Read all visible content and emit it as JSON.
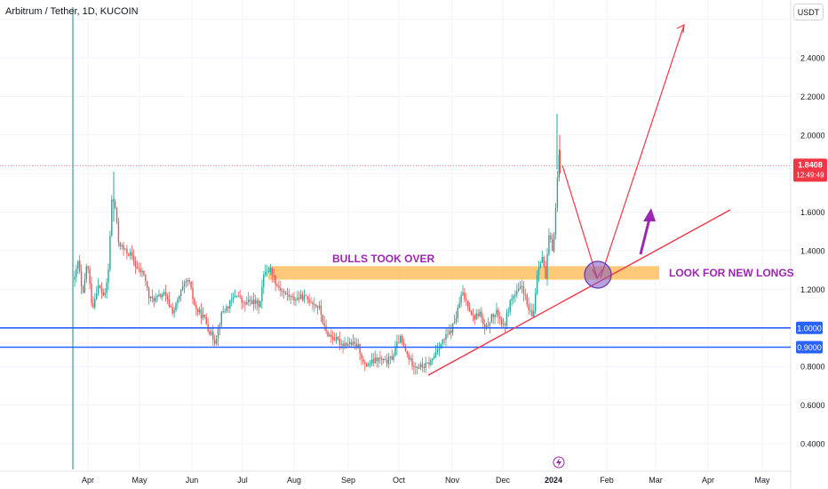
{
  "header": {
    "symbol_title": "Arbitrum / Tether, 1D, KUCOIN",
    "unit_label": "USDT"
  },
  "colors": {
    "up": "#26a69a",
    "down": "#ef5350",
    "level_line": "#2962ff",
    "trend": "#f23645",
    "zone": "#ffb74d",
    "annotation_text": "#9c27b0",
    "arrow_purple": "#9c27b0",
    "circle_fill": "#7e57c2"
  },
  "price_badges": {
    "last_price": "1.8408",
    "countdown": "12:49:49",
    "level_1": "1.0000",
    "level_2": "0.9000"
  },
  "annotations": {
    "zone_label": "BULLS TOOK OVER",
    "longs_label": "LOOK FOR NEW LONGS"
  },
  "chart_data": {
    "type": "candlestick",
    "title": "Arbitrum / Tether, 1D, KUCOIN",
    "ylabel": "USDT",
    "y_range": [
      0.22,
      2.61
    ],
    "y_ticks": [
      "2.4000",
      "2.2000",
      "2.0000",
      "1.6000",
      "1.4000",
      "1.2000",
      "0.8000",
      "0.6000",
      "0.4000"
    ],
    "x_ticks": [
      "Apr",
      "May",
      "Jun",
      "Jul",
      "Aug",
      "Sep",
      "Oct",
      "Nov",
      "Dec",
      "2024",
      "Feb",
      "Mar",
      "Apr",
      "May"
    ],
    "ohlc_approx": [
      {
        "period": "late Mar",
        "open": 1.3,
        "high": 1.45,
        "low": 1.05,
        "close": 1.25
      },
      {
        "period": "early Apr",
        "open": 1.25,
        "high": 1.35,
        "low": 1.05,
        "close": 1.15
      },
      {
        "period": "mid Apr",
        "open": 1.15,
        "high": 1.81,
        "low": 1.14,
        "close": 1.65
      },
      {
        "period": "late Apr",
        "open": 1.65,
        "high": 1.7,
        "low": 1.32,
        "close": 1.4
      },
      {
        "period": "May",
        "open": 1.4,
        "high": 1.45,
        "low": 1.05,
        "close": 1.12
      },
      {
        "period": "Jun",
        "open": 1.12,
        "high": 1.25,
        "low": 0.9,
        "close": 1.05
      },
      {
        "period": "Jul",
        "open": 1.05,
        "high": 1.34,
        "low": 1.0,
        "close": 1.28
      },
      {
        "period": "Aug",
        "open": 1.28,
        "high": 1.3,
        "low": 1.05,
        "close": 1.1
      },
      {
        "period": "Sep",
        "open": 1.1,
        "high": 1.12,
        "low": 0.75,
        "close": 0.83
      },
      {
        "period": "Oct",
        "open": 0.83,
        "high": 0.97,
        "low": 0.77,
        "close": 0.82
      },
      {
        "period": "Nov",
        "open": 0.82,
        "high": 1.22,
        "low": 0.8,
        "close": 1.08
      },
      {
        "period": "Dec",
        "open": 1.08,
        "high": 1.4,
        "low": 1.05,
        "close": 1.35
      },
      {
        "period": "early Jan",
        "open": 1.35,
        "high": 2.11,
        "low": 1.3,
        "close": 1.84
      }
    ],
    "last_price": 1.8408,
    "horizontal_levels": [
      1.0,
      0.9
    ],
    "grid": true
  }
}
